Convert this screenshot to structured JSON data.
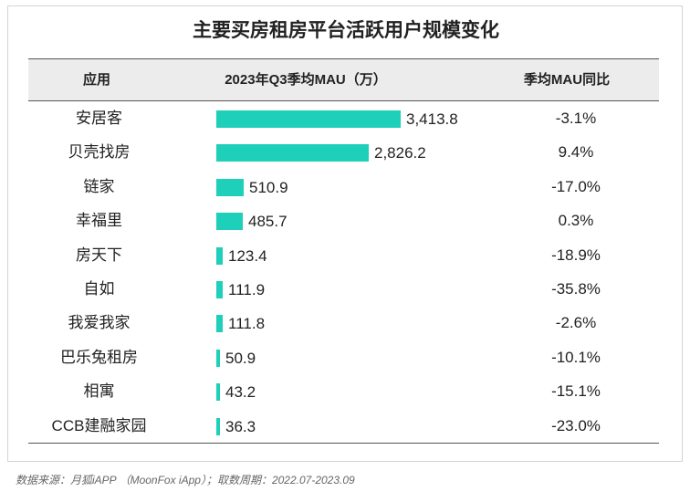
{
  "title": "主要买房租房平台活跃用户规模变化",
  "table": {
    "headers": {
      "app": "应用",
      "mau": "2023年Q3季均MAU（万）",
      "yoy": "季均MAU同比"
    }
  },
  "chart_data": {
    "type": "bar",
    "orientation": "horizontal",
    "title": "主要买房租房平台活跃用户规模变化",
    "categories": [
      "安居客",
      "贝壳找房",
      "链家",
      "幸福里",
      "房天下",
      "自如",
      "我爱我家",
      "巴乐兔租房",
      "相寓",
      "CCB建融家园"
    ],
    "values": [
      3413.8,
      2826.2,
      510.9,
      485.7,
      123.4,
      111.9,
      111.8,
      50.9,
      43.2,
      36.3
    ],
    "value_labels": [
      "3,413.8",
      "2,826.2",
      "510.9",
      "485.7",
      "123.4",
      "111.9",
      "111.8",
      "50.9",
      "43.2",
      "36.3"
    ],
    "yoy": [
      "-3.1%",
      "9.4%",
      "-17.0%",
      "0.3%",
      "-18.9%",
      "-35.8%",
      "-2.6%",
      "-10.1%",
      "-15.1%",
      "-23.0%"
    ],
    "xlim": [
      0,
      3413.8
    ],
    "bar_color": "#1ecfb9",
    "grid": false,
    "legend": "none"
  },
  "source": "数据来源：月狐iAPP （MoonFox iApp）；取数周期：2022.07-2023.09"
}
